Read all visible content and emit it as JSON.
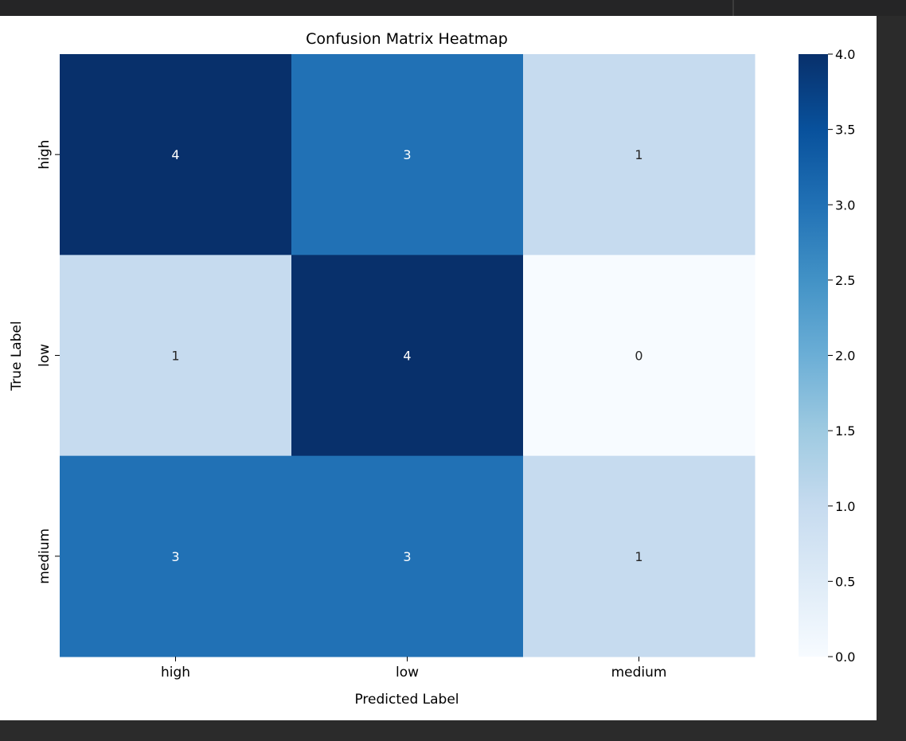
{
  "chart_data": {
    "type": "heatmap",
    "title": "Confusion Matrix Heatmap",
    "xlabel": "Predicted Label",
    "ylabel": "True Label",
    "x_categories": [
      "high",
      "low",
      "medium"
    ],
    "y_categories": [
      "high",
      "low",
      "medium"
    ],
    "values": [
      [
        4,
        3,
        1
      ],
      [
        1,
        4,
        0
      ],
      [
        3,
        3,
        1
      ]
    ],
    "annotations": true,
    "colormap": "Blues",
    "colorbar": {
      "range": [
        0.0,
        4.0
      ],
      "ticks": [
        "0.0",
        "0.5",
        "1.0",
        "1.5",
        "2.0",
        "2.5",
        "3.0",
        "3.5",
        "4.0"
      ]
    },
    "colors": {
      "low_end": "#f7fbff",
      "high_end": "#08306b"
    }
  }
}
